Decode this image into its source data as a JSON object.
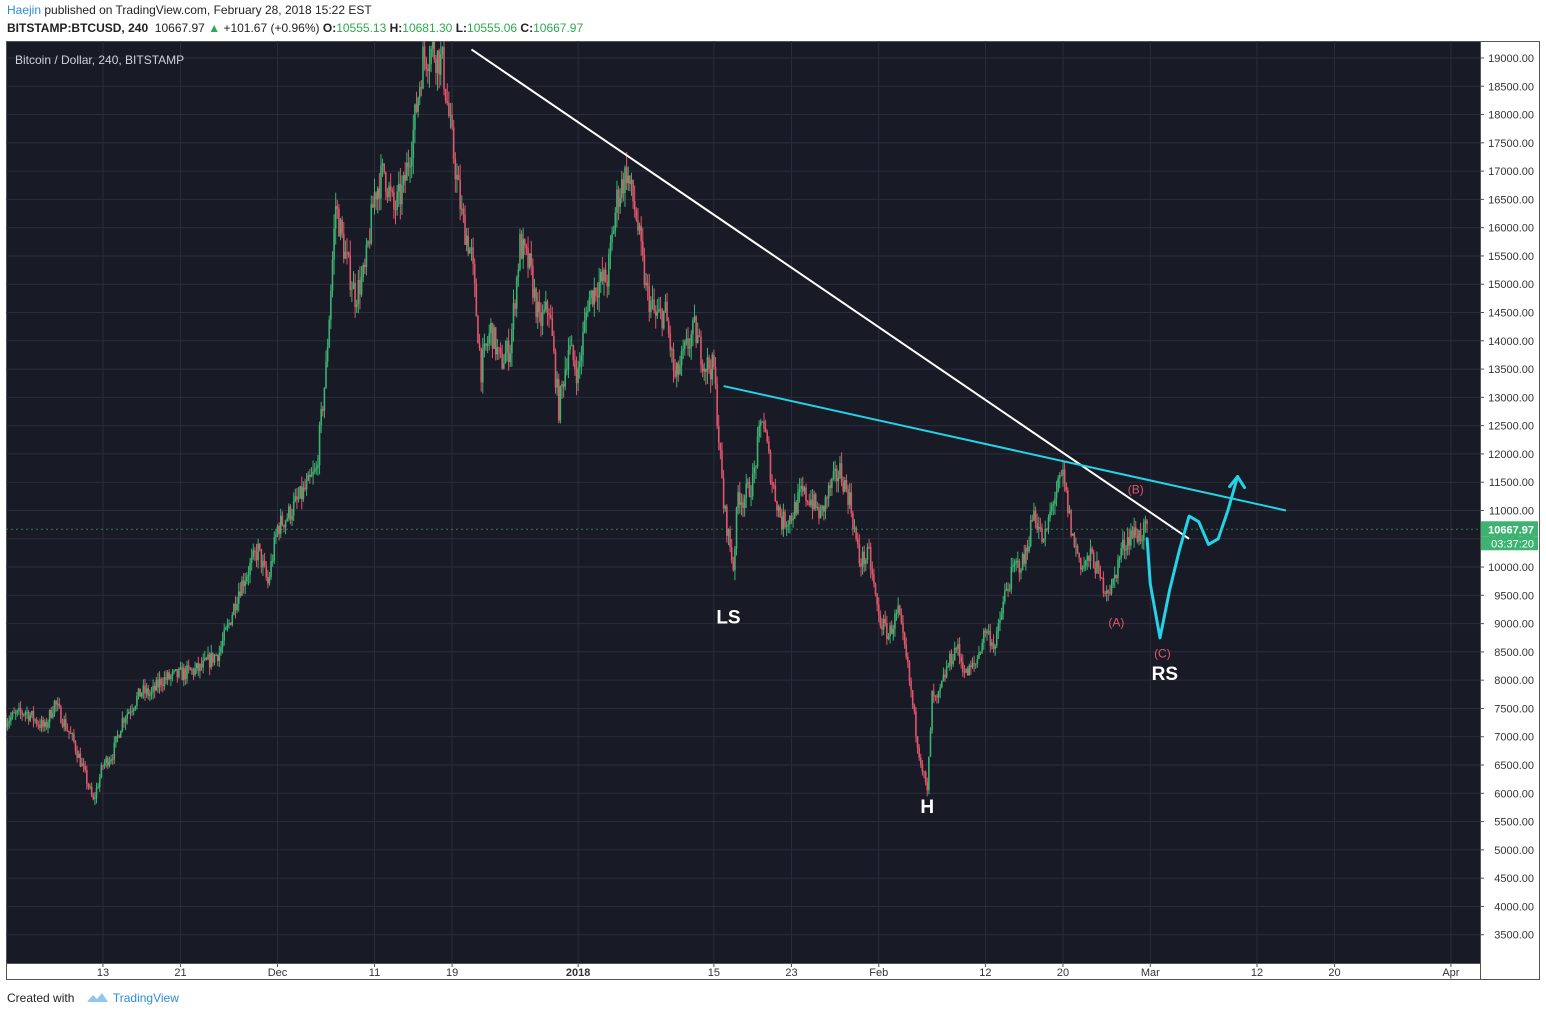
{
  "header": {
    "author": "Haejin",
    "published_text": "published on TradingView.com, February 28, 2018 15:22 EST",
    "symbol": "BITSTAMP:BTCUSD, 240",
    "last_price": "10667.97",
    "change_arrow": "▲",
    "change": "+101.67 (+0.96%)",
    "open_label": "O:",
    "open": "10555.13",
    "high_label": "H:",
    "high": "10681.30",
    "low_label": "L:",
    "low": "10555.06",
    "close_label": "C:",
    "close": "10667.97"
  },
  "footer": {
    "created_with": "Created with",
    "brand": "TradingView"
  },
  "colors": {
    "background": "#181a26",
    "grid": "#2a2d3c",
    "up": "#3cb371",
    "down": "#e0566b",
    "trendline": "#ffffff",
    "neckline": "#26d2e6",
    "wave_label": "#e0566b",
    "price_tag": "#3cb371"
  },
  "chart_data": {
    "type": "candlestick",
    "title": "Bitcoin / Dollar, 240, BITSTAMP",
    "ylim": [
      3000,
      19300
    ],
    "y_ticks": [
      "19000.00",
      "18500.00",
      "18000.00",
      "17500.00",
      "17000.00",
      "16500.00",
      "16000.00",
      "15500.00",
      "15000.00",
      "14500.00",
      "14000.00",
      "13500.00",
      "13000.00",
      "12500.00",
      "12000.00",
      "11500.00",
      "11000.00",
      "10500.00",
      "10000.00",
      "9500.00",
      "9000.00",
      "8500.00",
      "8000.00",
      "7500.00",
      "7000.00",
      "6500.00",
      "6000.00",
      "5500.00",
      "5000.00",
      "4500.00",
      "4000.00",
      "3500.00"
    ],
    "x_range": [
      "2017-11-03",
      "2018-04-04"
    ],
    "x_ticks": [
      {
        "label": "13",
        "date": "2017-11-13"
      },
      {
        "label": "21",
        "date": "2017-11-21"
      },
      {
        "label": "Dec",
        "date": "2017-12-01"
      },
      {
        "label": "11",
        "date": "2017-12-11"
      },
      {
        "label": "19",
        "date": "2017-12-19"
      },
      {
        "label": "2018",
        "date": "2018-01-01"
      },
      {
        "label": "15",
        "date": "2018-01-15"
      },
      {
        "label": "23",
        "date": "2018-01-23"
      },
      {
        "label": "Feb",
        "date": "2018-02-01"
      },
      {
        "label": "12",
        "date": "2018-02-12"
      },
      {
        "label": "20",
        "date": "2018-02-20"
      },
      {
        "label": "Mar",
        "date": "2018-03-01"
      },
      {
        "label": "12",
        "date": "2018-03-12"
      },
      {
        "label": "20",
        "date": "2018-03-20"
      },
      {
        "label": "Apr",
        "date": "2018-04-01"
      }
    ],
    "price_path": [
      [
        "2017-11-03",
        7300
      ],
      [
        "2017-11-05",
        7450
      ],
      [
        "2017-11-07",
        7150
      ],
      [
        "2017-11-08",
        7600
      ],
      [
        "2017-11-10",
        6900
      ],
      [
        "2017-11-11",
        6400
      ],
      [
        "2017-11-12",
        5850
      ],
      [
        "2017-11-13",
        6500
      ],
      [
        "2017-11-14",
        6700
      ],
      [
        "2017-11-15",
        7300
      ],
      [
        "2017-11-17",
        7800
      ],
      [
        "2017-11-18",
        7750
      ],
      [
        "2017-11-19",
        8000
      ],
      [
        "2017-11-21",
        8100
      ],
      [
        "2017-11-23",
        8200
      ],
      [
        "2017-11-25",
        8500
      ],
      [
        "2017-11-26",
        9000
      ],
      [
        "2017-11-27",
        9600
      ],
      [
        "2017-11-29",
        10300
      ],
      [
        "2017-11-30",
        9700
      ],
      [
        "2017-12-01",
        10700
      ],
      [
        "2017-12-02",
        10900
      ],
      [
        "2017-12-04",
        11400
      ],
      [
        "2017-12-05",
        11700
      ],
      [
        "2017-12-06",
        13500
      ],
      [
        "2017-12-07",
        16400
      ],
      [
        "2017-12-08",
        15500
      ],
      [
        "2017-12-09",
        14800
      ],
      [
        "2017-12-10",
        15200
      ],
      [
        "2017-12-11",
        16600
      ],
      [
        "2017-12-12",
        17000
      ],
      [
        "2017-12-13",
        16300
      ],
      [
        "2017-12-14",
        16700
      ],
      [
        "2017-12-15",
        17700
      ],
      [
        "2017-12-16",
        19000
      ],
      [
        "2017-12-17",
        19150
      ],
      [
        "2017-12-18",
        18900
      ],
      [
        "2017-12-19",
        17500
      ],
      [
        "2017-12-20",
        16200
      ],
      [
        "2017-12-21",
        15500
      ],
      [
        "2017-12-22",
        13500
      ],
      [
        "2017-12-23",
        14200
      ],
      [
        "2017-12-24",
        13600
      ],
      [
        "2017-12-25",
        13900
      ],
      [
        "2017-12-26",
        15700
      ],
      [
        "2017-12-27",
        15300
      ],
      [
        "2017-12-28",
        14300
      ],
      [
        "2017-12-29",
        14600
      ],
      [
        "2017-12-30",
        12800
      ],
      [
        "2017-12-31",
        13900
      ],
      [
        "2018-01-01",
        13400
      ],
      [
        "2018-01-02",
        14700
      ],
      [
        "2018-01-03",
        15000
      ],
      [
        "2018-01-04",
        15100
      ],
      [
        "2018-01-05",
        16500
      ],
      [
        "2018-01-06",
        17000
      ],
      [
        "2018-01-07",
        16200
      ],
      [
        "2018-01-08",
        14900
      ],
      [
        "2018-01-09",
        14400
      ],
      [
        "2018-01-10",
        14500
      ],
      [
        "2018-01-11",
        13300
      ],
      [
        "2018-01-12",
        13800
      ],
      [
        "2018-01-13",
        14200
      ],
      [
        "2018-01-14",
        13600
      ],
      [
        "2018-01-15",
        13500
      ],
      [
        "2018-01-16",
        11100
      ],
      [
        "2018-01-17",
        10000
      ],
      [
        "2018-01-17T12:00",
        11300
      ],
      [
        "2018-01-18",
        11200
      ],
      [
        "2018-01-19",
        11500
      ],
      [
        "2018-01-20",
        12700
      ],
      [
        "2018-01-21",
        11500
      ],
      [
        "2018-01-22",
        10800
      ],
      [
        "2018-01-23",
        10900
      ],
      [
        "2018-01-24",
        11300
      ],
      [
        "2018-01-25",
        11200
      ],
      [
        "2018-01-26",
        10900
      ],
      [
        "2018-01-27",
        11400
      ],
      [
        "2018-01-28",
        11700
      ],
      [
        "2018-01-29",
        11200
      ],
      [
        "2018-01-30",
        10100
      ],
      [
        "2018-01-31",
        10200
      ],
      [
        "2018-02-01",
        9100
      ],
      [
        "2018-02-02",
        8800
      ],
      [
        "2018-02-03",
        9200
      ],
      [
        "2018-02-04",
        8200
      ],
      [
        "2018-02-05",
        6900
      ],
      [
        "2018-02-06",
        6000
      ],
      [
        "2018-02-06T12:00",
        7700
      ],
      [
        "2018-02-07",
        7600
      ],
      [
        "2018-02-08",
        8200
      ],
      [
        "2018-02-09",
        8600
      ],
      [
        "2018-02-10",
        8100
      ],
      [
        "2018-02-11",
        8300
      ],
      [
        "2018-02-12",
        8900
      ],
      [
        "2018-02-13",
        8600
      ],
      [
        "2018-02-14",
        9500
      ],
      [
        "2018-02-15",
        10000
      ],
      [
        "2018-02-16",
        10100
      ],
      [
        "2018-02-17",
        11000
      ],
      [
        "2018-02-18",
        10400
      ],
      [
        "2018-02-19",
        11200
      ],
      [
        "2018-02-20",
        11600
      ],
      [
        "2018-02-21",
        10500
      ],
      [
        "2018-02-22",
        10000
      ],
      [
        "2018-02-23",
        10200
      ],
      [
        "2018-02-24",
        9700
      ],
      [
        "2018-02-25",
        9600
      ],
      [
        "2018-02-26",
        10300
      ],
      [
        "2018-02-27",
        10600
      ],
      [
        "2018-02-28",
        10570
      ],
      [
        "2018-02-28T16:00",
        10668
      ]
    ],
    "trendlines": [
      {
        "from": [
          "2017-12-21",
          19150
        ],
        "to": [
          "2018-03-05",
          10500
        ],
        "color": "trendline"
      },
      {
        "from": [
          "2018-01-16",
          13200
        ],
        "to": [
          "2018-03-15",
          11000
        ],
        "color": "neckline"
      }
    ],
    "projection": [
      [
        "2018-02-28T16:00",
        10500
      ],
      [
        "2018-03-01",
        9700
      ],
      [
        "2018-03-02",
        8750
      ],
      [
        "2018-03-03",
        9600
      ],
      [
        "2018-03-04",
        10300
      ],
      [
        "2018-03-05",
        10900
      ],
      [
        "2018-03-06",
        10800
      ],
      [
        "2018-03-07",
        10400
      ],
      [
        "2018-03-08",
        10500
      ],
      [
        "2018-03-09",
        11000
      ],
      [
        "2018-03-10",
        11600
      ]
    ],
    "pattern_labels": [
      {
        "text": "LS",
        "date": "2018-01-16T12:00",
        "price": 9000
      },
      {
        "text": "H",
        "date": "2018-02-06",
        "price": 5650
      },
      {
        "text": "RS",
        "date": "2018-03-02T12:00",
        "price": 8000
      }
    ],
    "wave_labels": [
      {
        "text": "(B)",
        "date": "2018-02-27T12:00",
        "price": 11300
      },
      {
        "text": "(A)",
        "date": "2018-02-25T12:00",
        "price": 8950
      },
      {
        "text": "(C)",
        "date": "2018-03-02T06:00",
        "price": 8400
      }
    ],
    "last_price_tag": "10667.97",
    "countdown_tag": "03:37:20"
  }
}
